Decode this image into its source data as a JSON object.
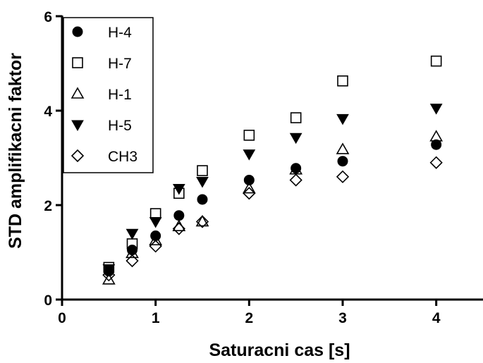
{
  "chart_data": {
    "type": "scatter",
    "title": "",
    "xlabel": "Saturacni cas [s]",
    "ylabel": "STD amplifikacni faktor",
    "xlim": [
      0,
      4.5
    ],
    "ylim": [
      0,
      6
    ],
    "xticks": [
      "0",
      "1",
      "2",
      "3",
      "4"
    ],
    "yticks": [
      "0",
      "2",
      "4",
      "6"
    ],
    "grid": false,
    "legend_position": "top-left",
    "series": [
      {
        "name": "H-4",
        "marker": "circle-filled",
        "x": [
          0.5,
          0.75,
          1.0,
          1.25,
          1.5,
          2.0,
          2.5,
          3.0,
          4.0
        ],
        "y": [
          0.6,
          1.05,
          1.35,
          1.78,
          2.12,
          2.53,
          2.78,
          2.93,
          3.28
        ]
      },
      {
        "name": "H-7",
        "marker": "square-open",
        "x": [
          0.5,
          0.75,
          1.0,
          1.25,
          1.5,
          2.0,
          2.5,
          3.0,
          4.0
        ],
        "y": [
          0.68,
          1.18,
          1.82,
          2.25,
          2.73,
          3.48,
          3.85,
          4.63,
          5.05
        ]
      },
      {
        "name": "H-1",
        "marker": "triangle-up-open",
        "x": [
          0.5,
          0.75,
          1.0,
          1.25,
          1.5,
          2.0,
          2.5,
          3.0,
          4.0
        ],
        "y": [
          0.42,
          0.98,
          1.25,
          1.55,
          1.65,
          2.35,
          2.75,
          3.18,
          3.45
        ]
      },
      {
        "name": "H-5",
        "marker": "triangle-down-filled",
        "x": [
          0.5,
          0.75,
          1.0,
          1.25,
          1.5,
          2.0,
          2.5,
          3.0,
          4.0
        ],
        "y": [
          0.65,
          1.4,
          1.65,
          2.35,
          2.5,
          3.08,
          3.43,
          3.83,
          4.05
        ]
      },
      {
        "name": "CH3",
        "marker": "diamond-open",
        "x": [
          0.5,
          0.75,
          1.0,
          1.25,
          1.5,
          2.0,
          2.5,
          3.0,
          4.0
        ],
        "y": [
          0.52,
          0.82,
          1.13,
          1.5,
          1.65,
          2.25,
          2.53,
          2.6,
          2.9
        ]
      }
    ]
  }
}
